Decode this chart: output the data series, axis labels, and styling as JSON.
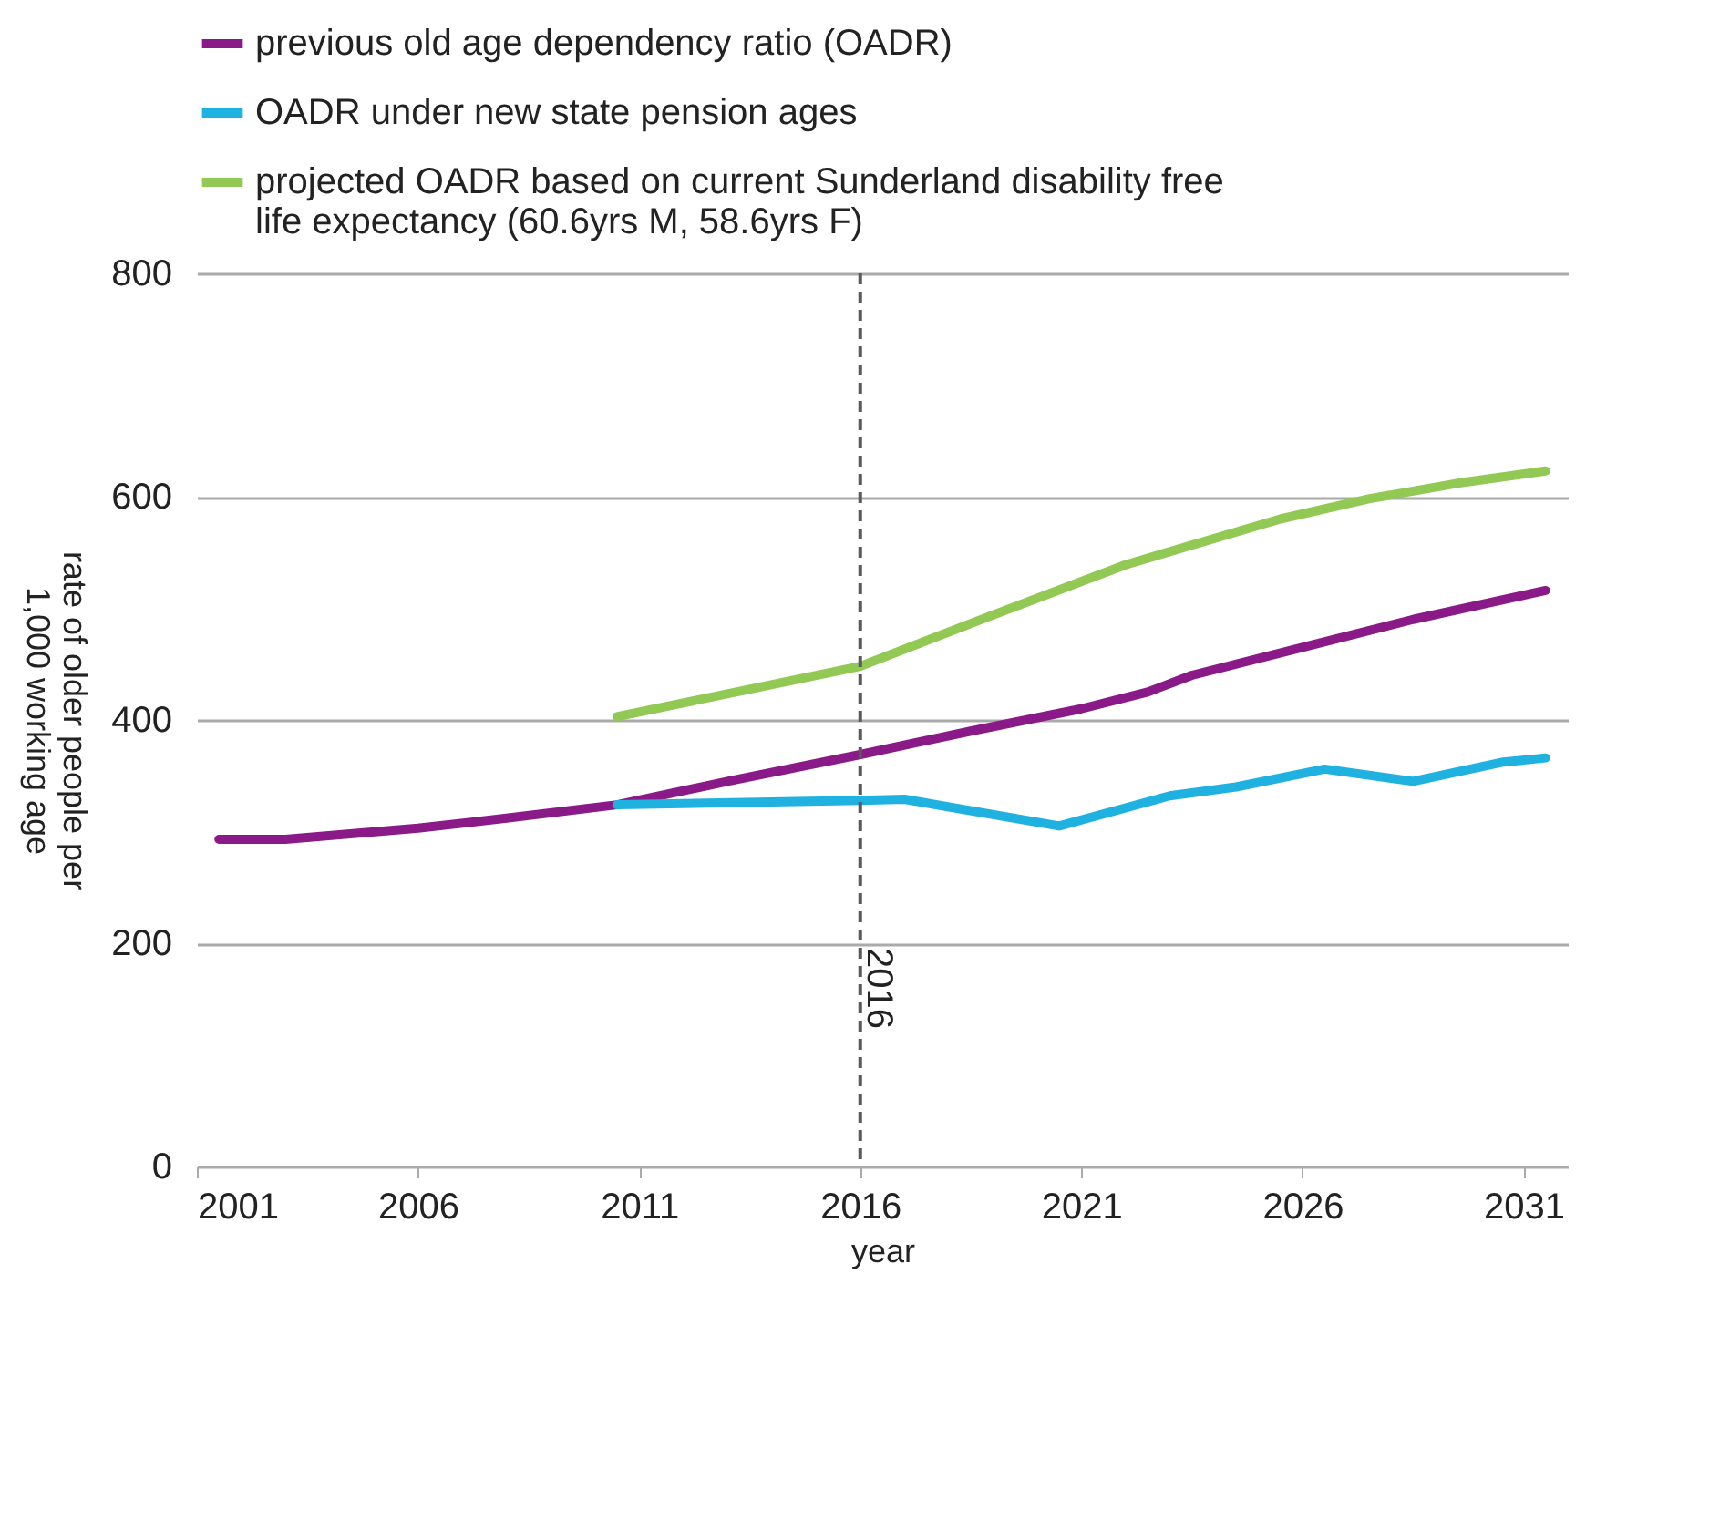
{
  "chart_data": {
    "type": "line",
    "xlabel": "year",
    "ylabel": "rate of older people per 1,000 working age",
    "xlim": [
      2001,
      2032
    ],
    "xticks": [
      2001,
      2006,
      2011,
      2016,
      2021,
      2026,
      2031
    ],
    "ylim": [
      0,
      800
    ],
    "yticks": [
      0,
      200,
      400,
      600,
      800
    ],
    "grid": "y",
    "legend": "top",
    "line_style": "solid",
    "ref_lines": [
      {
        "axis": "x",
        "value": 2016,
        "label": "2016",
        "color": "#595959",
        "line_style": "dashed"
      }
    ],
    "series": [
      {
        "name": "previous old age dependency ratio (OADR)",
        "color": "#8b1a89",
        "x": [
          2001.5,
          2003,
          2006,
          2008,
          2010.5,
          2013,
          2016,
          2018.5,
          2021,
          2022.5,
          2023.5,
          2026,
          2028.5,
          2031.5
        ],
        "values": [
          293,
          293,
          303,
          312,
          324,
          345,
          369,
          390,
          410,
          425,
          440,
          465,
          490,
          516
        ]
      },
      {
        "name": "OADR under new state pension ages",
        "color": "#1fb1e0",
        "x": [
          2010.5,
          2016,
          2017,
          2020.5,
          2023,
          2024.5,
          2026.5,
          2028.5,
          2030.5,
          2031.5
        ],
        "values": [
          324,
          328,
          329,
          305,
          332,
          340,
          356,
          345,
          362,
          366
        ]
      },
      {
        "name": "projected OADR based on current Sunderland disability free life expectancy (60.6yrs M, 58.6yrs F)",
        "color": "#92c954",
        "x": [
          2010.5,
          2016,
          2019,
          2022,
          2025.5,
          2027.5,
          2029.5,
          2031.5
        ],
        "values": [
          403,
          448,
          494,
          539,
          580,
          598,
          612,
          623
        ]
      }
    ]
  }
}
